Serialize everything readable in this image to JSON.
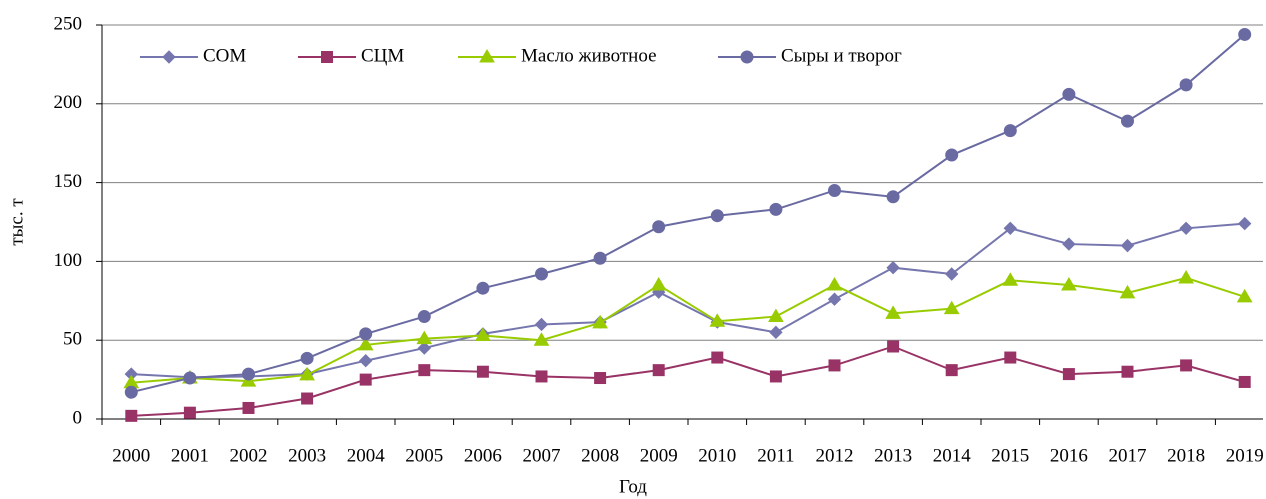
{
  "chart_data": {
    "type": "line",
    "xlabel": "Год",
    "ylabel": "тыс. т",
    "categories": [
      "2000",
      "2001",
      "2002",
      "2003",
      "2004",
      "2005",
      "2006",
      "2007",
      "2008",
      "2009",
      "2010",
      "2011",
      "2012",
      "2013",
      "2014",
      "2015",
      "2016",
      "2017",
      "2018",
      "2019"
    ],
    "series": [
      {
        "name": "СОМ",
        "color": "#7676ae",
        "marker": "diamond",
        "values": [
          28.5,
          26.5,
          27,
          28.5,
          37,
          45,
          54,
          60,
          61.5,
          80.5,
          61.5,
          55,
          76,
          96,
          92,
          121,
          111,
          110,
          121,
          124
        ]
      },
      {
        "name": "СЦМ",
        "color": "#993366",
        "marker": "square",
        "values": [
          2,
          4,
          7,
          13,
          25,
          31,
          30,
          27,
          26,
          31,
          39,
          27,
          34,
          46,
          31,
          39,
          28.5,
          30,
          34,
          23.5
        ]
      },
      {
        "name": "Масло животное",
        "color": "#99cc00",
        "marker": "triangle",
        "values": [
          23,
          26,
          24,
          28,
          47,
          51,
          53,
          50,
          61,
          85,
          62,
          65,
          85,
          67,
          70,
          88,
          85,
          80,
          89.5,
          77.5
        ]
      },
      {
        "name": "Сыры и творог",
        "color": "#6a6aa3",
        "marker": "circle",
        "values": [
          17,
          26,
          28.5,
          38.5,
          54,
          65,
          83,
          92,
          102,
          122,
          129,
          133,
          145,
          141,
          167.5,
          183,
          206,
          189,
          212,
          244
        ]
      }
    ],
    "ylim": [
      0,
      250
    ],
    "yticks": [
      0,
      50,
      100,
      150,
      200,
      250
    ],
    "grid": true,
    "legend": "top-left"
  }
}
